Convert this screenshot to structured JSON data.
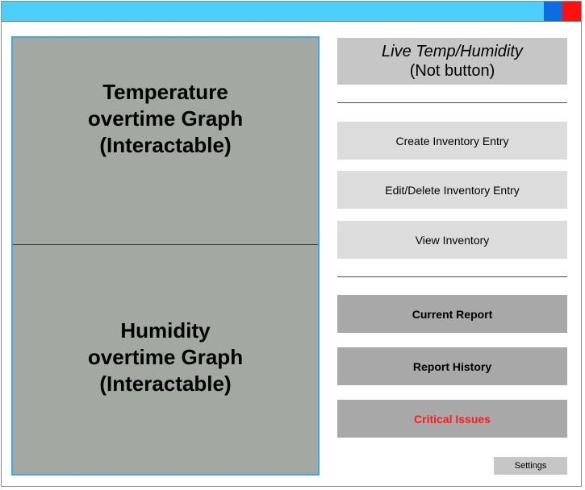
{
  "window": {
    "controls": {
      "minimize_color": "#0a6de0",
      "close_color": "#ff1010"
    },
    "titlebar_color": "#4cd0fb"
  },
  "graphs": {
    "temperature_label": "Temperature\novertime Graph\n(Interactable)",
    "humidity_label": "Humidity\novertime Graph\n(Interactable)"
  },
  "live_readout": {
    "title": "Live Temp/Humidity",
    "note": "(Not button)"
  },
  "inventory": {
    "create_label": "Create Inventory Entry",
    "edit_delete_label": "Edit/Delete Inventory Entry",
    "view_label": "View Inventory"
  },
  "reports": {
    "current_label": "Current Report",
    "history_label": "Report History",
    "critical_label": "Critical Issues",
    "critical_color": "#ff1a1a"
  },
  "settings_label": "Settings"
}
